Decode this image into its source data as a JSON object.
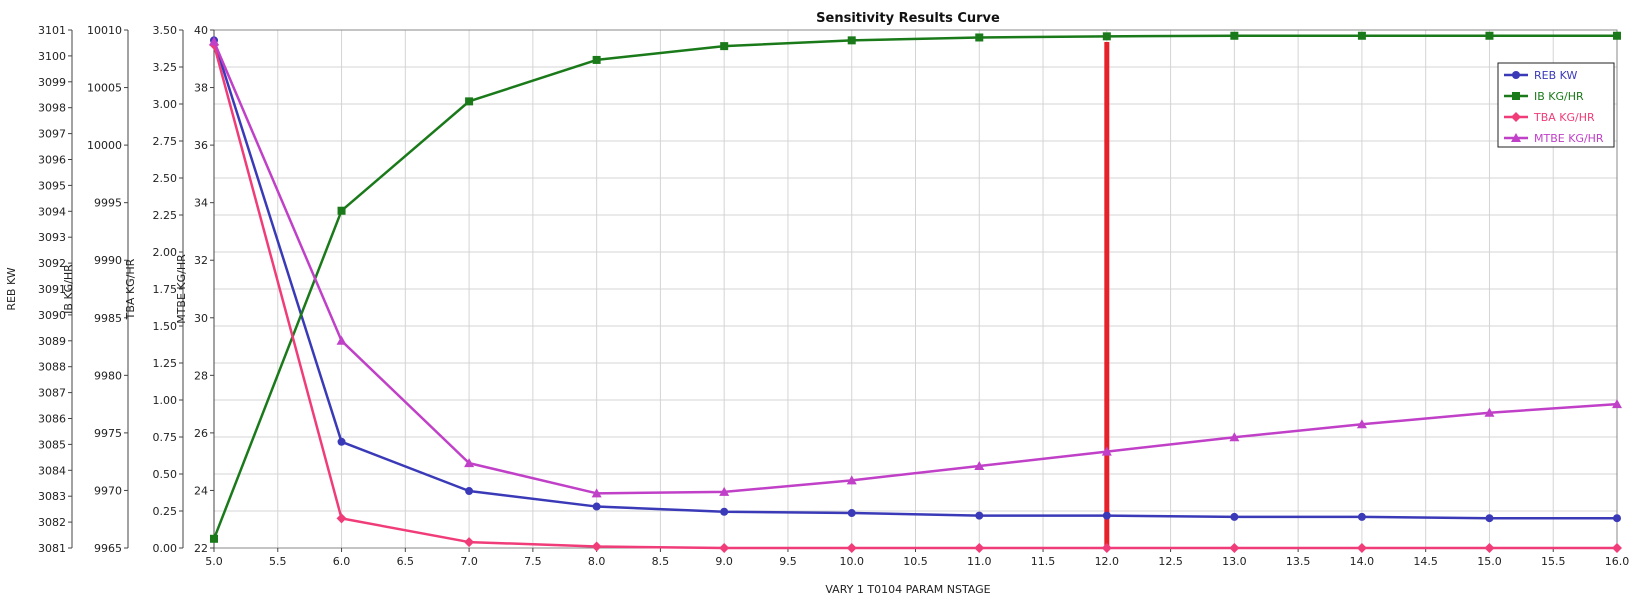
{
  "chart_data": {
    "type": "line",
    "title": "Sensitivity Results Curve",
    "xlabel": "VARY   1 T0104 PARAM NSTAGE",
    "xlim": [
      5.0,
      16.0
    ],
    "xtick_step": 0.5,
    "xtick_labels": [
      "5.0",
      "5.5",
      "6.0",
      "6.5",
      "7.0",
      "7.5",
      "8.0",
      "8.5",
      "9.0",
      "9.5",
      "10.0",
      "10.5",
      "11.0",
      "11.5",
      "12.0",
      "12.5",
      "13.0",
      "13.5",
      "14.0",
      "14.5",
      "15.0",
      "15.5",
      "16.0"
    ],
    "grid": true,
    "legend_position": "top-right",
    "y_axes": [
      {
        "key": "reb",
        "label": "REB KW",
        "lim": [
          3081,
          3101
        ],
        "ticks": [
          "3081",
          "3082",
          "3083",
          "3084",
          "3085",
          "3086",
          "3087",
          "3088",
          "3089",
          "3090",
          "3091",
          "3092",
          "3093",
          "3094",
          "3095",
          "3096",
          "3097",
          "3098",
          "3099",
          "3100",
          "3101"
        ]
      },
      {
        "key": "ib",
        "label": "IB KG/HR",
        "lim": [
          9965,
          10010
        ],
        "ticks": [
          "9965",
          "9970",
          "9975",
          "9980",
          "9985",
          "9990",
          "9995",
          "10000",
          "10005",
          "10010"
        ]
      },
      {
        "key": "tba",
        "label": "TBA KG/HR",
        "lim": [
          0,
          3.5
        ],
        "ticks": [
          "0.00",
          "0.25",
          "0.50",
          "0.75",
          "1.00",
          "1.25",
          "1.50",
          "1.75",
          "2.00",
          "2.25",
          "2.50",
          "2.75",
          "3.00",
          "3.25",
          "3.50"
        ]
      },
      {
        "key": "mtbe",
        "label": "MTBE KG/HR",
        "lim": [
          22,
          40
        ],
        "ticks": [
          "22",
          "24",
          "26",
          "28",
          "30",
          "32",
          "34",
          "36",
          "38",
          "40"
        ]
      }
    ],
    "x": [
      5,
      6,
      7,
      8,
      9,
      10,
      11,
      12,
      13,
      14,
      15,
      16
    ],
    "series": [
      {
        "name": "REB KW",
        "axis": "reb",
        "color": "#3a3ab8",
        "marker": "circle",
        "values": [
          3100.6,
          3085.1,
          3083.2,
          3082.6,
          3082.4,
          3082.35,
          3082.25,
          3082.25,
          3082.2,
          3082.2,
          3082.15,
          3082.15
        ]
      },
      {
        "name": "IB KG/HR",
        "axis": "ib",
        "color": "#1a7a1a",
        "marker": "square",
        "values": [
          9965.8,
          9994.3,
          10003.8,
          10007.4,
          10008.6,
          10009.1,
          10009.35,
          10009.45,
          10009.5,
          10009.5,
          10009.5,
          10009.5
        ]
      },
      {
        "name": "TBA KG/HR",
        "axis": "tba",
        "color": "#f03c78",
        "marker": "diamond",
        "values": [
          3.4,
          0.2,
          0.04,
          0.01,
          0.0,
          0.0,
          0.0,
          0.0,
          0.0,
          0.0,
          0.0,
          0.0
        ]
      },
      {
        "name": "MTBE KG/HR",
        "axis": "mtbe",
        "color": "#c040c8",
        "marker": "triangle",
        "values": [
          39.6,
          29.2,
          24.95,
          23.9,
          23.95,
          24.35,
          24.85,
          25.35,
          25.85,
          26.3,
          26.7,
          27.0
        ]
      }
    ],
    "marker_line": {
      "x": 12.0,
      "color": "#e8202a"
    }
  }
}
